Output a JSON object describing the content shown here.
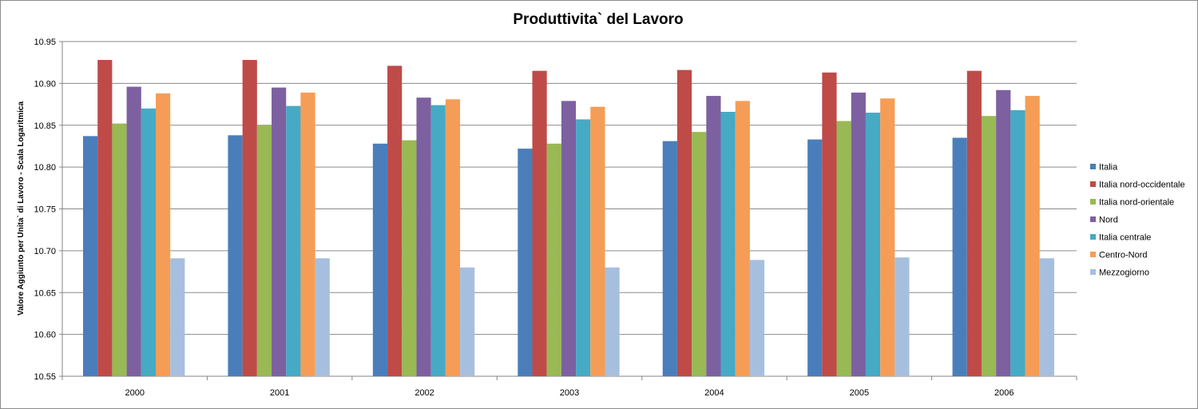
{
  "chart_data": {
    "type": "bar",
    "title": "Produttivita` del Lavoro",
    "xlabel": "",
    "ylabel": "Valore Aggiunto per Unita` di Lavoro - Scala Logaritmica",
    "ylim": [
      10.55,
      10.95
    ],
    "yticks": [
      "10.55",
      "10.60",
      "10.65",
      "10.70",
      "10.75",
      "10.80",
      "10.85",
      "10.90",
      "10.95"
    ],
    "grid": true,
    "legend_position": "right",
    "categories": [
      "2000",
      "2001",
      "2002",
      "2003",
      "2004",
      "2005",
      "2006"
    ],
    "series": [
      {
        "name": "Italia",
        "color": "#4a7ebb",
        "values": [
          10.837,
          10.838,
          10.828,
          10.822,
          10.831,
          10.833,
          10.835
        ]
      },
      {
        "name": "Italia nord-occidentale",
        "color": "#be4b48",
        "values": [
          10.928,
          10.928,
          10.921,
          10.915,
          10.916,
          10.913,
          10.915
        ]
      },
      {
        "name": "Italia nord-orientale",
        "color": "#98b954",
        "values": [
          10.852,
          10.85,
          10.832,
          10.828,
          10.842,
          10.855,
          10.861
        ]
      },
      {
        "name": "Nord",
        "color": "#7d60a0",
        "values": [
          10.896,
          10.895,
          10.883,
          10.879,
          10.885,
          10.889,
          10.892
        ]
      },
      {
        "name": "Italia centrale",
        "color": "#46aac4",
        "values": [
          10.87,
          10.873,
          10.874,
          10.857,
          10.866,
          10.865,
          10.868
        ]
      },
      {
        "name": "Centro-Nord",
        "color": "#f59d56",
        "values": [
          10.888,
          10.889,
          10.881,
          10.872,
          10.879,
          10.882,
          10.885
        ]
      },
      {
        "name": "Mezzogiorno",
        "color": "#a7bfde",
        "values": [
          10.691,
          10.691,
          10.68,
          10.68,
          10.689,
          10.692,
          10.691
        ]
      }
    ]
  }
}
